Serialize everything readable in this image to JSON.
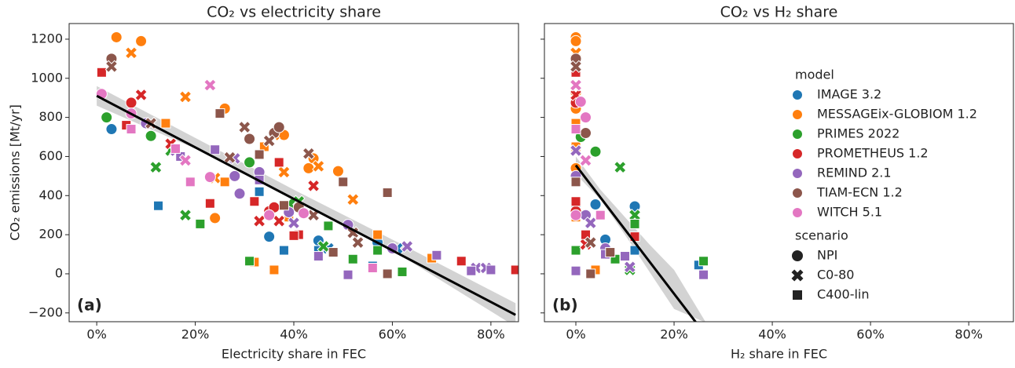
{
  "chart_data": [
    {
      "type": "scatter",
      "title": "CO₂ vs electricity share",
      "xlabel": "Electricity share in FEC",
      "ylabel": "CO₂ emissions [Mt/yr]",
      "annotation": "(a)",
      "xlim": [
        -5.6,
        85.6
      ],
      "ylim": [
        -245,
        1280
      ],
      "xticks": [
        {
          "value": 0,
          "label": "0%"
        },
        {
          "value": 20,
          "label": "20%"
        },
        {
          "value": 40,
          "label": "40%"
        },
        {
          "value": 60,
          "label": "60%"
        },
        {
          "value": 80,
          "label": "80%"
        }
      ],
      "yticks": [
        {
          "value": -200,
          "label": "−200"
        },
        0,
        200,
        400,
        600,
        800,
        1000,
        1200
      ],
      "ytick_labels": true,
      "fit": {
        "x": [
          0,
          85
        ],
        "y": [
          910,
          -210
        ]
      },
      "band": {
        "x": [
          0,
          20,
          40,
          60,
          85
        ],
        "lower": [
          860,
          640,
          385,
          120,
          -270
        ],
        "upper": [
          960,
          695,
          430,
          175,
          -150
        ]
      },
      "series": [
        {
          "model": 0,
          "scenario": 0,
          "x": [
            3,
            35,
            45,
            57
          ],
          "y": [
            740,
            190,
            170,
            160
          ]
        },
        {
          "model": 0,
          "scenario": 1,
          "x": [
            47,
            61
          ],
          "y": [
            130,
            130
          ]
        },
        {
          "model": 0,
          "scenario": 2,
          "x": [
            12.5,
            33,
            38,
            45,
            56
          ],
          "y": [
            348,
            420,
            120,
            120,
            40
          ]
        },
        {
          "model": 1,
          "scenario": 0,
          "x": [
            4,
            9,
            26,
            24,
            43,
            44,
            49,
            38
          ],
          "y": [
            1210,
            1190,
            845,
            285,
            540,
            590,
            525,
            710
          ]
        },
        {
          "model": 1,
          "scenario": 1,
          "x": [
            7,
            18,
            36,
            38,
            45,
            52,
            24
          ],
          "y": [
            1130,
            905,
            710,
            520,
            550,
            380,
            490
          ]
        },
        {
          "model": 1,
          "scenario": 2,
          "x": [
            14,
            26,
            34,
            36,
            32,
            39,
            57,
            68
          ],
          "y": [
            770,
            470,
            650,
            20,
            60,
            290,
            200,
            80
          ]
        },
        {
          "model": 2,
          "scenario": 0,
          "x": [
            2,
            11,
            31,
            40
          ],
          "y": [
            800,
            705,
            570,
            360
          ]
        },
        {
          "model": 2,
          "scenario": 1,
          "x": [
            12,
            18,
            15,
            41,
            46
          ],
          "y": [
            545,
            300,
            630,
            370,
            140
          ]
        },
        {
          "model": 2,
          "scenario": 2,
          "x": [
            21,
            31,
            52,
            57,
            62,
            47
          ],
          "y": [
            255,
            65,
            75,
            120,
            10,
            245
          ]
        },
        {
          "model": 3,
          "scenario": 0,
          "x": [
            7,
            35,
            36
          ],
          "y": [
            875,
            320,
            340
          ]
        },
        {
          "model": 3,
          "scenario": 1,
          "x": [
            9,
            15,
            44,
            37,
            33
          ],
          "y": [
            915,
            665,
            450,
            270,
            270
          ]
        },
        {
          "model": 3,
          "scenario": 2,
          "x": [
            1,
            6,
            23,
            32,
            41,
            40,
            74,
            85,
            37
          ],
          "y": [
            1030,
            760,
            360,
            370,
            200,
            195,
            65,
            20,
            570
          ]
        },
        {
          "model": 4,
          "scenario": 0,
          "x": [
            10,
            28,
            29,
            33,
            39,
            51,
            60
          ],
          "y": [
            770,
            500,
            410,
            520,
            315,
            250,
            130
          ]
        },
        {
          "model": 4,
          "scenario": 1,
          "x": [
            16,
            28,
            40,
            63,
            77,
            79
          ],
          "y": [
            630,
            590,
            260,
            140,
            30,
            30
          ]
        },
        {
          "model": 4,
          "scenario": 2,
          "x": [
            17,
            24,
            33,
            45,
            51,
            76,
            80,
            69
          ],
          "y": [
            600,
            635,
            480,
            90,
            -5,
            15,
            20,
            95
          ]
        },
        {
          "model": 5,
          "scenario": 0,
          "x": [
            3,
            31,
            36,
            37,
            41
          ],
          "y": [
            1100,
            690,
            720,
            750,
            340
          ]
        },
        {
          "model": 5,
          "scenario": 1,
          "x": [
            3,
            11,
            27,
            30,
            35,
            43,
            44,
            52,
            53
          ],
          "y": [
            1060,
            770,
            595,
            750,
            680,
            615,
            300,
            210,
            160
          ]
        },
        {
          "model": 5,
          "scenario": 2,
          "x": [
            25,
            33,
            38,
            48,
            50,
            59,
            59
          ],
          "y": [
            820,
            610,
            350,
            110,
            470,
            415,
            0
          ]
        },
        {
          "model": 6,
          "scenario": 0,
          "x": [
            1,
            7,
            23,
            35,
            42
          ],
          "y": [
            920,
            820,
            495,
            300,
            310
          ]
        },
        {
          "model": 6,
          "scenario": 1,
          "x": [
            23,
            18
          ],
          "y": [
            965,
            580
          ]
        },
        {
          "model": 6,
          "scenario": 2,
          "x": [
            7,
            19,
            16,
            56
          ],
          "y": [
            740,
            470,
            640,
            30
          ]
        }
      ]
    },
    {
      "type": "scatter",
      "title": "CO₂ vs H₂ share",
      "xlabel": "H₂ share in FEC",
      "annotation": "(b)",
      "xlim": [
        -6.4,
        89.1
      ],
      "ylim": [
        -245,
        1280
      ],
      "xticks": [
        {
          "value": 0,
          "label": "0%"
        },
        {
          "value": 20,
          "label": "20%"
        },
        {
          "value": 40,
          "label": "40%"
        },
        {
          "value": 60,
          "label": "60%"
        },
        {
          "value": 80,
          "label": "80%"
        }
      ],
      "yticks": [
        -200,
        0,
        200,
        400,
        600,
        800,
        1000,
        1200
      ],
      "ytick_labels": false,
      "fit": {
        "x": [
          0,
          24.5
        ],
        "y": [
          555,
          -250
        ]
      },
      "band": {
        "x": [
          0,
          5,
          10,
          15,
          20,
          26.5
        ],
        "lower": [
          510,
          380,
          200,
          10,
          -180,
          -250
        ],
        "upper": [
          600,
          430,
          290,
          150,
          20,
          -250
        ]
      },
      "series": [
        {
          "model": 0,
          "scenario": 0,
          "x": [
            4,
            6,
            12,
            0
          ],
          "y": [
            355,
            175,
            345,
            740
          ]
        },
        {
          "model": 0,
          "scenario": 2,
          "x": [
            12,
            25,
            0
          ],
          "y": [
            120,
            45,
            348
          ]
        },
        {
          "model": 1,
          "scenario": 0,
          "x": [
            0,
            0,
            0,
            0
          ],
          "y": [
            1210,
            1190,
            845,
            540
          ]
        },
        {
          "model": 1,
          "scenario": 1,
          "x": [
            0,
            0,
            0
          ],
          "y": [
            1130,
            905,
            490
          ]
        },
        {
          "model": 1,
          "scenario": 2,
          "x": [
            0,
            0,
            0,
            4
          ],
          "y": [
            770,
            650,
            290,
            20
          ]
        },
        {
          "model": 2,
          "scenario": 0,
          "x": [
            4,
            1
          ],
          "y": [
            625,
            700
          ]
        },
        {
          "model": 2,
          "scenario": 1,
          "x": [
            9,
            12,
            11
          ],
          "y": [
            545,
            300,
            20
          ]
        },
        {
          "model": 2,
          "scenario": 2,
          "x": [
            26,
            12,
            8,
            0
          ],
          "y": [
            65,
            255,
            75,
            120
          ]
        },
        {
          "model": 3,
          "scenario": 0,
          "x": [
            0,
            0
          ],
          "y": [
            875,
            320
          ]
        },
        {
          "model": 3,
          "scenario": 1,
          "x": [
            2,
            0
          ],
          "y": [
            150,
            915
          ]
        },
        {
          "model": 3,
          "scenario": 2,
          "x": [
            12,
            2,
            0,
            0
          ],
          "y": [
            190,
            200,
            1030,
            370
          ]
        },
        {
          "model": 4,
          "scenario": 0,
          "x": [
            0,
            2,
            6
          ],
          "y": [
            500,
            300,
            130
          ]
        },
        {
          "model": 4,
          "scenario": 1,
          "x": [
            3,
            11,
            0
          ],
          "y": [
            260,
            35,
            630
          ]
        },
        {
          "model": 4,
          "scenario": 2,
          "x": [
            26,
            6,
            10,
            0
          ],
          "y": [
            -5,
            100,
            90,
            15
          ]
        },
        {
          "model": 5,
          "scenario": 0,
          "x": [
            0,
            2
          ],
          "y": [
            1100,
            720
          ]
        },
        {
          "model": 5,
          "scenario": 1,
          "x": [
            0,
            3
          ],
          "y": [
            1060,
            160
          ]
        },
        {
          "model": 5,
          "scenario": 2,
          "x": [
            3,
            7,
            0
          ],
          "y": [
            0,
            110,
            470
          ]
        },
        {
          "model": 6,
          "scenario": 0,
          "x": [
            1,
            2,
            0
          ],
          "y": [
            880,
            800,
            300
          ]
        },
        {
          "model": 6,
          "scenario": 1,
          "x": [
            2,
            0
          ],
          "y": [
            580,
            965
          ]
        },
        {
          "model": 6,
          "scenario": 2,
          "x": [
            5,
            0
          ],
          "y": [
            300,
            740
          ]
        }
      ]
    }
  ],
  "legend": {
    "hue_title": "model",
    "models": [
      {
        "name": "IMAGE 3.2",
        "color": "#1f77b4"
      },
      {
        "name": "MESSAGEix-GLOBIOM 1.2",
        "color": "#ff7f0e"
      },
      {
        "name": "PRIMES 2022",
        "color": "#2ca02c"
      },
      {
        "name": "PROMETHEUS 1.2",
        "color": "#d62728"
      },
      {
        "name": "REMIND 2.1",
        "color": "#9467bd"
      },
      {
        "name": "TIAM-ECN 1.2",
        "color": "#8c564b"
      },
      {
        "name": "WITCH 5.1",
        "color": "#e377c2"
      }
    ],
    "style_title": "scenario",
    "scenarios": [
      {
        "name": "NPI",
        "marker": "circle"
      },
      {
        "name": "C0-80",
        "marker": "x"
      },
      {
        "name": "C400-lin",
        "marker": "square"
      }
    ]
  }
}
